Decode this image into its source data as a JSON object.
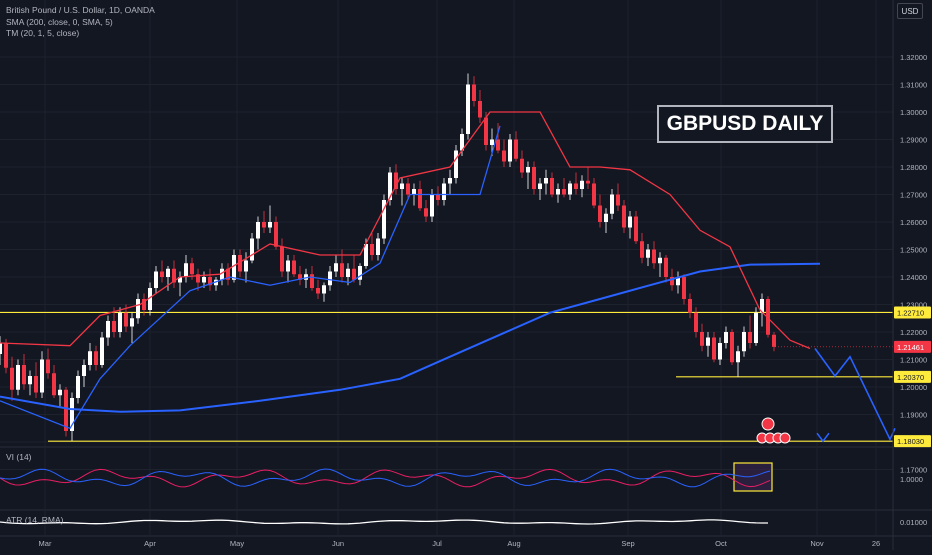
{
  "header": {
    "symbol_line": "British Pound / U.S. Dollar, 1D, OANDA",
    "indicator_sma": "SMA (200, close, 0, SMA, 5)",
    "indicator_tm": "TM (20, 1, 5, close)",
    "currency": "USD"
  },
  "badge": {
    "text": "GBPUSD DAILY"
  },
  "panes": {
    "vi_label": "VI (14)",
    "vi_tick": "1.0000",
    "atr_label": "ATR (14, RMA)",
    "atr_tick": "0.01000"
  },
  "chart_data": {
    "type": "candlestick",
    "title": "British Pound / U.S. Dollar, 1D, OANDA",
    "y_ticks": [
      "1.32000",
      "1.31000",
      "1.30000",
      "1.29000",
      "1.28000",
      "1.27000",
      "1.26000",
      "1.25000",
      "1.24000",
      "1.23000",
      "1.22000",
      "1.21000",
      "1.20000",
      "1.19000",
      "1.18000",
      "1.17000"
    ],
    "ylim": [
      1.166,
      1.325
    ],
    "x_ticks": [
      "Mar",
      "Apr",
      "May",
      "Jun",
      "Jul",
      "Aug",
      "Sep",
      "Oct",
      "Nov",
      "26"
    ],
    "horizontal_levels": [
      {
        "value": 1.2271,
        "label": "1.22710",
        "color": "#ffeb3b"
      },
      {
        "value": 1.2037,
        "label": "1.20370",
        "color": "#ffeb3b"
      },
      {
        "value": 1.1803,
        "label": "1.18030",
        "color": "#ffeb3b"
      }
    ],
    "last_price": {
      "value": 1.21461,
      "label": "1.21461",
      "color": "#f23645"
    },
    "series": [
      {
        "name": "SMA (200, close, 0, SMA, 5)",
        "color": "#2962ff",
        "points": [
          [
            0,
            1.1965
          ],
          [
            0.07,
            1.192
          ],
          [
            0.12,
            1.191
          ],
          [
            0.18,
            1.1915
          ],
          [
            0.26,
            1.195
          ],
          [
            0.34,
            1.199
          ],
          [
            0.4,
            1.203
          ],
          [
            0.45,
            1.211
          ],
          [
            0.5,
            1.219
          ],
          [
            0.55,
            1.227
          ],
          [
            0.6,
            1.232
          ],
          [
            0.65,
            1.237
          ],
          [
            0.7,
            1.242
          ],
          [
            0.75,
            1.2445
          ],
          [
            0.82,
            1.2448
          ]
        ]
      },
      {
        "name": "TM upper",
        "color": "#f23645",
        "points": [
          [
            0,
            1.216
          ],
          [
            0.07,
            1.215
          ],
          [
            0.1,
            1.226
          ],
          [
            0.14,
            1.23
          ],
          [
            0.18,
            1.24
          ],
          [
            0.22,
            1.241
          ],
          [
            0.27,
            1.252
          ],
          [
            0.32,
            1.248
          ],
          [
            0.36,
            1.248
          ],
          [
            0.4,
            1.276
          ],
          [
            0.45,
            1.28
          ],
          [
            0.49,
            1.3
          ],
          [
            0.54,
            1.3
          ],
          [
            0.57,
            1.28
          ],
          [
            0.6,
            1.28
          ],
          [
            0.63,
            1.279
          ],
          [
            0.67,
            1.27
          ],
          [
            0.7,
            1.257
          ],
          [
            0.73,
            1.251
          ],
          [
            0.76,
            1.228
          ],
          [
            0.79,
            1.217
          ],
          [
            0.81,
            1.214
          ]
        ]
      },
      {
        "name": "TM lower",
        "color": "#2962ff",
        "points": [
          [
            0,
            1.195
          ],
          [
            0.07,
            1.185
          ],
          [
            0.1,
            1.203
          ],
          [
            0.13,
            1.215
          ],
          [
            0.16,
            1.225
          ],
          [
            0.19,
            1.235
          ],
          [
            0.23,
            1.24
          ],
          [
            0.27,
            1.237
          ],
          [
            0.31,
            1.24
          ],
          [
            0.35,
            1.238
          ],
          [
            0.38,
            1.245
          ],
          [
            0.41,
            1.27
          ],
          [
            0.45,
            1.27
          ],
          [
            0.48,
            1.27
          ],
          [
            0.5,
            1.295
          ]
        ]
      }
    ],
    "projection": {
      "color": "#2962ff",
      "points": [
        [
          0.815,
          1.214
        ],
        [
          0.835,
          1.204
        ],
        [
          0.85,
          1.211
        ],
        [
          0.89,
          1.181
        ],
        [
          0.895,
          1.185
        ]
      ]
    },
    "candles": [
      [
        0.0,
        1.212,
        1.2185,
        1.208,
        1.216
      ],
      [
        0.006,
        1.216,
        1.2175,
        1.205,
        1.207
      ],
      [
        0.012,
        1.207,
        1.211,
        1.195,
        1.199
      ],
      [
        0.018,
        1.199,
        1.21,
        1.197,
        1.208
      ],
      [
        0.024,
        1.208,
        1.212,
        1.199,
        1.201
      ],
      [
        0.03,
        1.201,
        1.206,
        1.197,
        1.204
      ],
      [
        0.036,
        1.204,
        1.209,
        1.196,
        1.198
      ],
      [
        0.042,
        1.198,
        1.213,
        1.196,
        1.21
      ],
      [
        0.048,
        1.21,
        1.214,
        1.203,
        1.205
      ],
      [
        0.054,
        1.205,
        1.208,
        1.196,
        1.197
      ],
      [
        0.06,
        1.197,
        1.201,
        1.193,
        1.199
      ],
      [
        0.066,
        1.199,
        1.2,
        1.182,
        1.184
      ],
      [
        0.072,
        1.184,
        1.198,
        1.1803,
        1.196
      ],
      [
        0.078,
        1.196,
        1.206,
        1.194,
        1.204
      ],
      [
        0.084,
        1.204,
        1.21,
        1.2,
        1.208
      ],
      [
        0.09,
        1.208,
        1.216,
        1.206,
        1.213
      ],
      [
        0.096,
        1.213,
        1.215,
        1.206,
        1.208
      ],
      [
        0.102,
        1.208,
        1.22,
        1.207,
        1.218
      ],
      [
        0.108,
        1.218,
        1.226,
        1.215,
        1.224
      ],
      [
        0.114,
        1.224,
        1.229,
        1.218,
        1.22
      ],
      [
        0.12,
        1.22,
        1.229,
        1.218,
        1.227
      ],
      [
        0.126,
        1.227,
        1.23,
        1.22,
        1.222
      ],
      [
        0.132,
        1.222,
        1.227,
        1.216,
        1.225
      ],
      [
        0.138,
        1.225,
        1.234,
        1.223,
        1.232
      ],
      [
        0.144,
        1.232,
        1.234,
        1.226,
        1.228
      ],
      [
        0.15,
        1.228,
        1.238,
        1.226,
        1.236
      ],
      [
        0.156,
        1.236,
        1.244,
        1.234,
        1.242
      ],
      [
        0.162,
        1.242,
        1.246,
        1.238,
        1.24
      ],
      [
        0.168,
        1.24,
        1.244,
        1.235,
        1.243
      ],
      [
        0.174,
        1.243,
        1.246,
        1.236,
        1.238
      ],
      [
        0.18,
        1.238,
        1.242,
        1.233,
        1.24
      ],
      [
        0.186,
        1.24,
        1.248,
        1.238,
        1.245
      ],
      [
        0.192,
        1.245,
        1.247,
        1.239,
        1.241
      ],
      [
        0.198,
        1.241,
        1.243,
        1.235,
        1.238
      ],
      [
        0.204,
        1.238,
        1.242,
        1.236,
        1.24
      ],
      [
        0.21,
        1.24,
        1.243,
        1.235,
        1.237
      ],
      [
        0.216,
        1.237,
        1.24,
        1.235,
        1.239
      ],
      [
        0.222,
        1.239,
        1.245,
        1.237,
        1.243
      ],
      [
        0.228,
        1.243,
        1.245,
        1.237,
        1.239
      ],
      [
        0.234,
        1.239,
        1.25,
        1.238,
        1.248
      ],
      [
        0.24,
        1.248,
        1.25,
        1.24,
        1.242
      ],
      [
        0.246,
        1.242,
        1.249,
        1.238,
        1.246
      ],
      [
        0.252,
        1.246,
        1.256,
        1.245,
        1.254
      ],
      [
        0.258,
        1.254,
        1.262,
        1.25,
        1.26
      ],
      [
        0.264,
        1.26,
        1.264,
        1.256,
        1.258
      ],
      [
        0.27,
        1.258,
        1.266,
        1.256,
        1.26
      ],
      [
        0.276,
        1.26,
        1.262,
        1.25,
        1.251
      ],
      [
        0.282,
        1.251,
        1.254,
        1.24,
        1.242
      ],
      [
        0.288,
        1.242,
        1.248,
        1.238,
        1.246
      ],
      [
        0.294,
        1.246,
        1.248,
        1.24,
        1.241
      ],
      [
        0.3,
        1.241,
        1.244,
        1.237,
        1.239
      ],
      [
        0.306,
        1.239,
        1.243,
        1.236,
        1.241
      ],
      [
        0.312,
        1.241,
        1.244,
        1.235,
        1.236
      ],
      [
        0.318,
        1.236,
        1.239,
        1.232,
        1.234
      ],
      [
        0.324,
        1.234,
        1.238,
        1.231,
        1.237
      ],
      [
        0.33,
        1.237,
        1.244,
        1.235,
        1.242
      ],
      [
        0.336,
        1.242,
        1.248,
        1.24,
        1.245
      ],
      [
        0.342,
        1.245,
        1.25,
        1.238,
        1.24
      ],
      [
        0.348,
        1.24,
        1.245,
        1.237,
        1.243
      ],
      [
        0.354,
        1.243,
        1.248,
        1.238,
        1.239
      ],
      [
        0.36,
        1.239,
        1.245,
        1.237,
        1.244
      ],
      [
        0.366,
        1.244,
        1.254,
        1.243,
        1.252
      ],
      [
        0.372,
        1.252,
        1.256,
        1.246,
        1.248
      ],
      [
        0.378,
        1.248,
        1.256,
        1.246,
        1.254
      ],
      [
        0.384,
        1.254,
        1.27,
        1.252,
        1.268
      ],
      [
        0.39,
        1.268,
        1.28,
        1.266,
        1.278
      ],
      [
        0.396,
        1.278,
        1.281,
        1.27,
        1.272
      ],
      [
        0.402,
        1.272,
        1.276,
        1.266,
        1.274
      ],
      [
        0.408,
        1.274,
        1.276,
        1.268,
        1.27
      ],
      [
        0.414,
        1.27,
        1.274,
        1.266,
        1.272
      ],
      [
        0.42,
        1.272,
        1.275,
        1.264,
        1.265
      ],
      [
        0.426,
        1.265,
        1.268,
        1.26,
        1.262
      ],
      [
        0.432,
        1.262,
        1.272,
        1.26,
        1.27
      ],
      [
        0.438,
        1.27,
        1.273,
        1.266,
        1.268
      ],
      [
        0.444,
        1.268,
        1.276,
        1.266,
        1.274
      ],
      [
        0.45,
        1.274,
        1.279,
        1.27,
        1.276
      ],
      [
        0.456,
        1.276,
        1.288,
        1.274,
        1.286
      ],
      [
        0.462,
        1.286,
        1.294,
        1.284,
        1.292
      ],
      [
        0.468,
        1.292,
        1.314,
        1.29,
        1.31
      ],
      [
        0.474,
        1.31,
        1.313,
        1.302,
        1.304
      ],
      [
        0.48,
        1.304,
        1.308,
        1.296,
        1.298
      ],
      [
        0.486,
        1.298,
        1.3,
        1.286,
        1.288
      ],
      [
        0.492,
        1.288,
        1.294,
        1.284,
        1.29
      ],
      [
        0.498,
        1.29,
        1.296,
        1.285,
        1.286
      ],
      [
        0.504,
        1.286,
        1.29,
        1.28,
        1.282
      ],
      [
        0.51,
        1.282,
        1.292,
        1.28,
        1.29
      ],
      [
        0.516,
        1.29,
        1.293,
        1.282,
        1.283
      ],
      [
        0.522,
        1.283,
        1.286,
        1.276,
        1.278
      ],
      [
        0.528,
        1.278,
        1.282,
        1.272,
        1.28
      ],
      [
        0.534,
        1.28,
        1.282,
        1.27,
        1.272
      ],
      [
        0.54,
        1.272,
        1.276,
        1.268,
        1.274
      ],
      [
        0.546,
        1.274,
        1.279,
        1.27,
        1.276
      ],
      [
        0.552,
        1.276,
        1.278,
        1.269,
        1.27
      ],
      [
        0.558,
        1.27,
        1.274,
        1.267,
        1.272
      ],
      [
        0.564,
        1.272,
        1.276,
        1.269,
        1.27
      ],
      [
        0.57,
        1.27,
        1.275,
        1.268,
        1.274
      ],
      [
        0.576,
        1.274,
        1.278,
        1.27,
        1.272
      ],
      [
        0.582,
        1.272,
        1.277,
        1.269,
        1.275
      ],
      [
        0.588,
        1.275,
        1.28,
        1.272,
        1.274
      ],
      [
        0.594,
        1.274,
        1.276,
        1.265,
        1.266
      ],
      [
        0.6,
        1.266,
        1.27,
        1.258,
        1.26
      ],
      [
        0.606,
        1.26,
        1.265,
        1.256,
        1.263
      ],
      [
        0.612,
        1.263,
        1.272,
        1.261,
        1.27
      ],
      [
        0.618,
        1.27,
        1.274,
        1.264,
        1.266
      ],
      [
        0.624,
        1.266,
        1.268,
        1.256,
        1.258
      ],
      [
        0.63,
        1.258,
        1.264,
        1.254,
        1.262
      ],
      [
        0.636,
        1.262,
        1.264,
        1.252,
        1.253
      ],
      [
        0.642,
        1.253,
        1.256,
        1.245,
        1.247
      ],
      [
        0.648,
        1.247,
        1.252,
        1.244,
        1.25
      ],
      [
        0.654,
        1.25,
        1.253,
        1.243,
        1.245
      ],
      [
        0.66,
        1.245,
        1.249,
        1.24,
        1.247
      ],
      [
        0.666,
        1.247,
        1.248,
        1.238,
        1.24
      ],
      [
        0.672,
        1.24,
        1.243,
        1.235,
        1.237
      ],
      [
        0.678,
        1.237,
        1.242,
        1.234,
        1.24
      ],
      [
        0.684,
        1.24,
        1.241,
        1.23,
        1.232
      ],
      [
        0.69,
        1.232,
        1.234,
        1.225,
        1.227
      ],
      [
        0.696,
        1.227,
        1.229,
        1.218,
        1.22
      ],
      [
        0.702,
        1.22,
        1.223,
        1.213,
        1.215
      ],
      [
        0.708,
        1.215,
        1.22,
        1.211,
        1.218
      ],
      [
        0.714,
        1.218,
        1.22,
        1.209,
        1.21
      ],
      [
        0.72,
        1.21,
        1.218,
        1.208,
        1.216
      ],
      [
        0.726,
        1.216,
        1.222,
        1.214,
        1.22
      ],
      [
        0.732,
        1.22,
        1.221,
        1.208,
        1.209
      ],
      [
        0.738,
        1.209,
        1.215,
        1.2037,
        1.213
      ],
      [
        0.744,
        1.213,
        1.222,
        1.211,
        1.22
      ],
      [
        0.75,
        1.22,
        1.226,
        1.214,
        1.216
      ],
      [
        0.756,
        1.216,
        1.229,
        1.215,
        1.227
      ],
      [
        0.762,
        1.227,
        1.234,
        1.222,
        1.232
      ],
      [
        0.768,
        1.232,
        1.233,
        1.218,
        1.219
      ],
      [
        0.774,
        1.219,
        1.22,
        1.213,
        1.2146
      ]
    ]
  }
}
